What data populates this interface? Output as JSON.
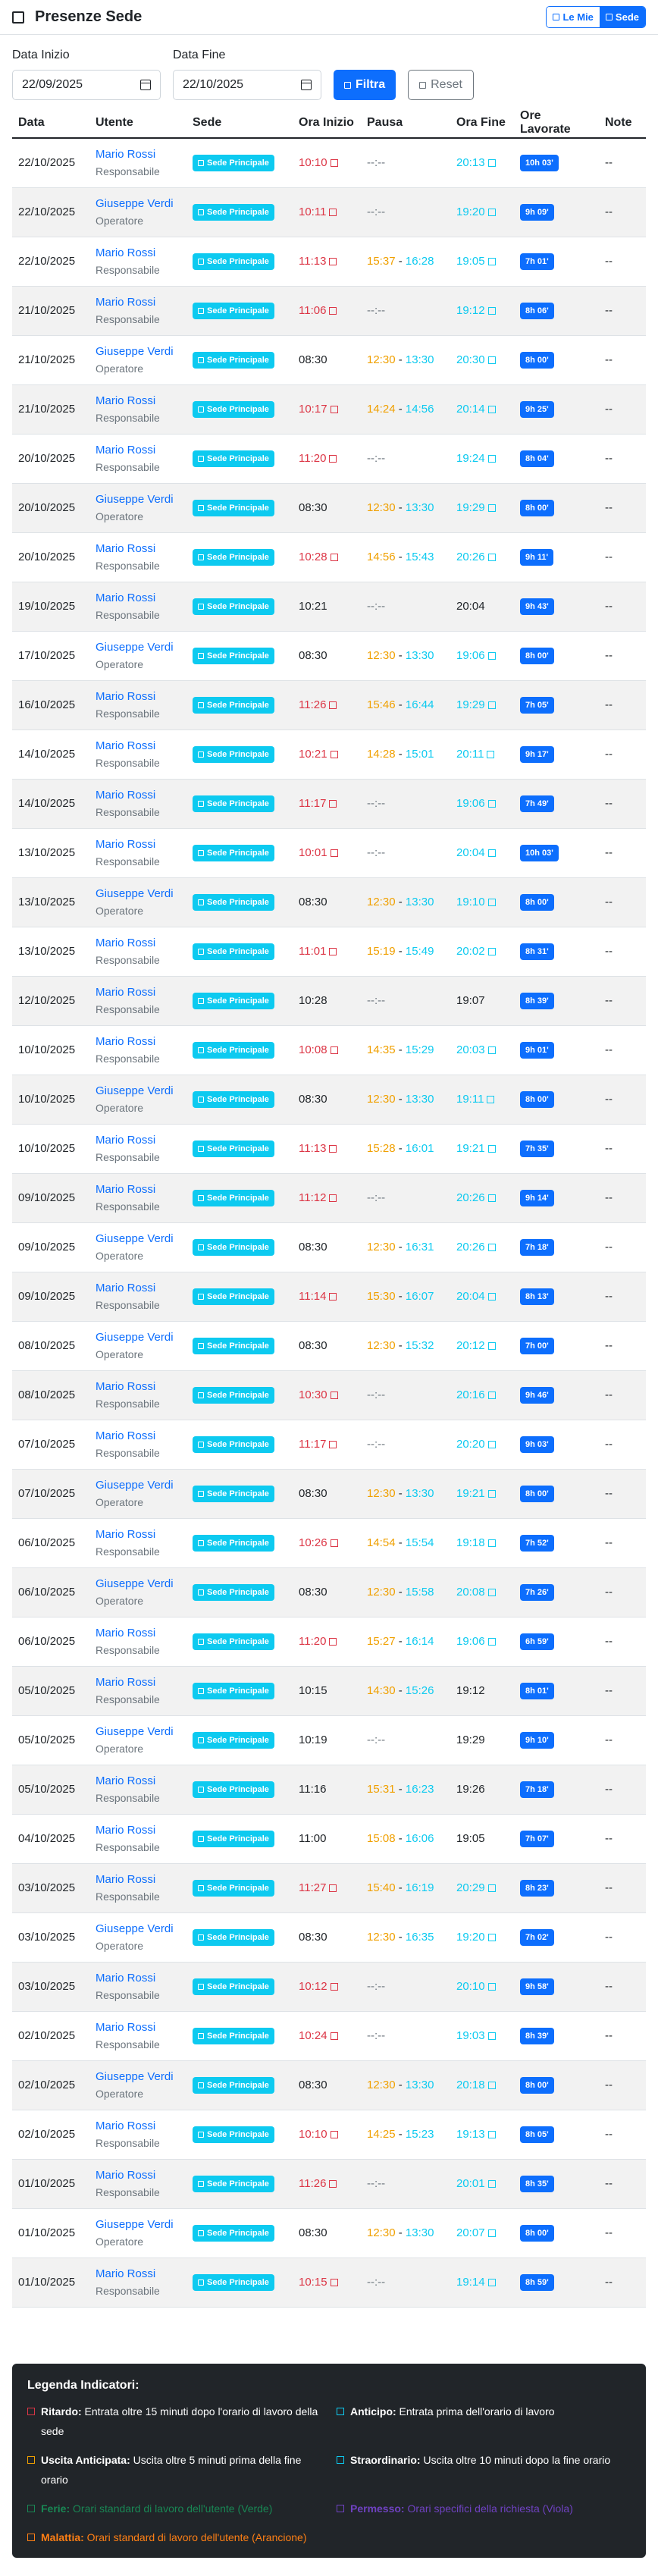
{
  "header": {
    "title": "Presenze Sede",
    "toggle_mine": "Le Mie",
    "toggle_site": "Sede"
  },
  "filters": {
    "start_label": "Data Inizio",
    "start_value": "22/09/2025",
    "end_label": "Data Fine",
    "end_value": "22/10/2025",
    "filter_button": "Filtra",
    "reset_button": "Reset"
  },
  "table": {
    "columns": [
      "Data",
      "Utente",
      "Sede",
      "Ora Inizio",
      "Pausa",
      "Ora Fine",
      "Ore Lavorate",
      "Note"
    ],
    "rows": [
      {
        "date": "22/10/2025",
        "user": "Mario Rossi",
        "role": "Responsabile",
        "site": "Sede Principale",
        "start": "10:10",
        "start_ind": "late",
        "pause_start": "",
        "pause_end": "",
        "end": "20:13",
        "end_ind": "over",
        "hours": "10h 03'",
        "note": "--"
      },
      {
        "date": "22/10/2025",
        "user": "Giuseppe Verdi",
        "role": "Operatore",
        "site": "Sede Principale",
        "start": "10:11",
        "start_ind": "late",
        "pause_start": "",
        "pause_end": "",
        "end": "19:20",
        "end_ind": "over",
        "hours": "9h 09'",
        "note": "--"
      },
      {
        "date": "22/10/2025",
        "user": "Mario Rossi",
        "role": "Responsabile",
        "site": "Sede Principale",
        "start": "11:13",
        "start_ind": "late",
        "pause_start": "15:37",
        "pause_end": "16:28",
        "end": "19:05",
        "end_ind": "over",
        "hours": "7h 01'",
        "note": "--"
      },
      {
        "date": "21/10/2025",
        "user": "Mario Rossi",
        "role": "Responsabile",
        "site": "Sede Principale",
        "start": "11:06",
        "start_ind": "late",
        "pause_start": "",
        "pause_end": "",
        "end": "19:12",
        "end_ind": "over",
        "hours": "8h 06'",
        "note": "--"
      },
      {
        "date": "21/10/2025",
        "user": "Giuseppe Verdi",
        "role": "Operatore",
        "site": "Sede Principale",
        "start": "08:30",
        "start_ind": "",
        "pause_start": "12:30",
        "pause_end": "13:30",
        "end": "20:30",
        "end_ind": "over",
        "hours": "8h 00'",
        "note": "--"
      },
      {
        "date": "21/10/2025",
        "user": "Mario Rossi",
        "role": "Responsabile",
        "site": "Sede Principale",
        "start": "10:17",
        "start_ind": "late",
        "pause_start": "14:24",
        "pause_end": "14:56",
        "end": "20:14",
        "end_ind": "over",
        "hours": "9h 25'",
        "note": "--"
      },
      {
        "date": "20/10/2025",
        "user": "Mario Rossi",
        "role": "Responsabile",
        "site": "Sede Principale",
        "start": "11:20",
        "start_ind": "late",
        "pause_start": "",
        "pause_end": "",
        "end": "19:24",
        "end_ind": "over",
        "hours": "8h 04'",
        "note": "--"
      },
      {
        "date": "20/10/2025",
        "user": "Giuseppe Verdi",
        "role": "Operatore",
        "site": "Sede Principale",
        "start": "08:30",
        "start_ind": "",
        "pause_start": "12:30",
        "pause_end": "13:30",
        "end": "19:29",
        "end_ind": "over",
        "hours": "8h 00'",
        "note": "--"
      },
      {
        "date": "20/10/2025",
        "user": "Mario Rossi",
        "role": "Responsabile",
        "site": "Sede Principale",
        "start": "10:28",
        "start_ind": "late",
        "pause_start": "14:56",
        "pause_end": "15:43",
        "end": "20:26",
        "end_ind": "over",
        "hours": "9h 11'",
        "note": "--"
      },
      {
        "date": "19/10/2025",
        "user": "Mario Rossi",
        "role": "Responsabile",
        "site": "Sede Principale",
        "start": "10:21",
        "start_ind": "",
        "pause_start": "",
        "pause_end": "",
        "end": "20:04",
        "end_ind": "",
        "hours": "9h 43'",
        "note": "--"
      },
      {
        "date": "17/10/2025",
        "user": "Giuseppe Verdi",
        "role": "Operatore",
        "site": "Sede Principale",
        "start": "08:30",
        "start_ind": "",
        "pause_start": "12:30",
        "pause_end": "13:30",
        "end": "19:06",
        "end_ind": "over",
        "hours": "8h 00'",
        "note": "--"
      },
      {
        "date": "16/10/2025",
        "user": "Mario Rossi",
        "role": "Responsabile",
        "site": "Sede Principale",
        "start": "11:26",
        "start_ind": "late",
        "pause_start": "15:46",
        "pause_end": "16:44",
        "end": "19:29",
        "end_ind": "over",
        "hours": "7h 05'",
        "note": "--"
      },
      {
        "date": "14/10/2025",
        "user": "Mario Rossi",
        "role": "Responsabile",
        "site": "Sede Principale",
        "start": "10:21",
        "start_ind": "late",
        "pause_start": "14:28",
        "pause_end": "15:01",
        "end": "20:11",
        "end_ind": "over",
        "hours": "9h 17'",
        "note": "--"
      },
      {
        "date": "14/10/2025",
        "user": "Mario Rossi",
        "role": "Responsabile",
        "site": "Sede Principale",
        "start": "11:17",
        "start_ind": "late",
        "pause_start": "",
        "pause_end": "",
        "end": "19:06",
        "end_ind": "over",
        "hours": "7h 49'",
        "note": "--"
      },
      {
        "date": "13/10/2025",
        "user": "Mario Rossi",
        "role": "Responsabile",
        "site": "Sede Principale",
        "start": "10:01",
        "start_ind": "late",
        "pause_start": "",
        "pause_end": "",
        "end": "20:04",
        "end_ind": "over",
        "hours": "10h 03'",
        "note": "--"
      },
      {
        "date": "13/10/2025",
        "user": "Giuseppe Verdi",
        "role": "Operatore",
        "site": "Sede Principale",
        "start": "08:30",
        "start_ind": "",
        "pause_start": "12:30",
        "pause_end": "13:30",
        "end": "19:10",
        "end_ind": "over",
        "hours": "8h 00'",
        "note": "--"
      },
      {
        "date": "13/10/2025",
        "user": "Mario Rossi",
        "role": "Responsabile",
        "site": "Sede Principale",
        "start": "11:01",
        "start_ind": "late",
        "pause_start": "15:19",
        "pause_end": "15:49",
        "end": "20:02",
        "end_ind": "over",
        "hours": "8h 31'",
        "note": "--"
      },
      {
        "date": "12/10/2025",
        "user": "Mario Rossi",
        "role": "Responsabile",
        "site": "Sede Principale",
        "start": "10:28",
        "start_ind": "",
        "pause_start": "",
        "pause_end": "",
        "end": "19:07",
        "end_ind": "",
        "hours": "8h 39'",
        "note": "--"
      },
      {
        "date": "10/10/2025",
        "user": "Mario Rossi",
        "role": "Responsabile",
        "site": "Sede Principale",
        "start": "10:08",
        "start_ind": "late",
        "pause_start": "14:35",
        "pause_end": "15:29",
        "end": "20:03",
        "end_ind": "over",
        "hours": "9h 01'",
        "note": "--"
      },
      {
        "date": "10/10/2025",
        "user": "Giuseppe Verdi",
        "role": "Operatore",
        "site": "Sede Principale",
        "start": "08:30",
        "start_ind": "",
        "pause_start": "12:30",
        "pause_end": "13:30",
        "end": "19:11",
        "end_ind": "over",
        "hours": "8h 00'",
        "note": "--"
      },
      {
        "date": "10/10/2025",
        "user": "Mario Rossi",
        "role": "Responsabile",
        "site": "Sede Principale",
        "start": "11:13",
        "start_ind": "late",
        "pause_start": "15:28",
        "pause_end": "16:01",
        "end": "19:21",
        "end_ind": "over",
        "hours": "7h 35'",
        "note": "--"
      },
      {
        "date": "09/10/2025",
        "user": "Mario Rossi",
        "role": "Responsabile",
        "site": "Sede Principale",
        "start": "11:12",
        "start_ind": "late",
        "pause_start": "",
        "pause_end": "",
        "end": "20:26",
        "end_ind": "over",
        "hours": "9h 14'",
        "note": "--"
      },
      {
        "date": "09/10/2025",
        "user": "Giuseppe Verdi",
        "role": "Operatore",
        "site": "Sede Principale",
        "start": "08:30",
        "start_ind": "",
        "pause_start": "12:30",
        "pause_end": "16:31",
        "end": "20:26",
        "end_ind": "over",
        "hours": "7h 18'",
        "note": "--"
      },
      {
        "date": "09/10/2025",
        "user": "Mario Rossi",
        "role": "Responsabile",
        "site": "Sede Principale",
        "start": "11:14",
        "start_ind": "late",
        "pause_start": "15:30",
        "pause_end": "16:07",
        "end": "20:04",
        "end_ind": "over",
        "hours": "8h 13'",
        "note": "--"
      },
      {
        "date": "08/10/2025",
        "user": "Giuseppe Verdi",
        "role": "Operatore",
        "site": "Sede Principale",
        "start": "08:30",
        "start_ind": "",
        "pause_start": "12:30",
        "pause_end": "15:32",
        "end": "20:12",
        "end_ind": "over",
        "hours": "7h 00'",
        "note": "--"
      },
      {
        "date": "08/10/2025",
        "user": "Mario Rossi",
        "role": "Responsabile",
        "site": "Sede Principale",
        "start": "10:30",
        "start_ind": "late",
        "pause_start": "",
        "pause_end": "",
        "end": "20:16",
        "end_ind": "over",
        "hours": "9h 46'",
        "note": "--"
      },
      {
        "date": "07/10/2025",
        "user": "Mario Rossi",
        "role": "Responsabile",
        "site": "Sede Principale",
        "start": "11:17",
        "start_ind": "late",
        "pause_start": "",
        "pause_end": "",
        "end": "20:20",
        "end_ind": "over",
        "hours": "9h 03'",
        "note": "--"
      },
      {
        "date": "07/10/2025",
        "user": "Giuseppe Verdi",
        "role": "Operatore",
        "site": "Sede Principale",
        "start": "08:30",
        "start_ind": "",
        "pause_start": "12:30",
        "pause_end": "13:30",
        "end": "19:21",
        "end_ind": "over",
        "hours": "8h 00'",
        "note": "--"
      },
      {
        "date": "06/10/2025",
        "user": "Mario Rossi",
        "role": "Responsabile",
        "site": "Sede Principale",
        "start": "10:26",
        "start_ind": "late",
        "pause_start": "14:54",
        "pause_end": "15:54",
        "end": "19:18",
        "end_ind": "over",
        "hours": "7h 52'",
        "note": "--"
      },
      {
        "date": "06/10/2025",
        "user": "Giuseppe Verdi",
        "role": "Operatore",
        "site": "Sede Principale",
        "start": "08:30",
        "start_ind": "",
        "pause_start": "12:30",
        "pause_end": "15:58",
        "end": "20:08",
        "end_ind": "over",
        "hours": "7h 26'",
        "note": "--"
      },
      {
        "date": "06/10/2025",
        "user": "Mario Rossi",
        "role": "Responsabile",
        "site": "Sede Principale",
        "start": "11:20",
        "start_ind": "late",
        "pause_start": "15:27",
        "pause_end": "16:14",
        "end": "19:06",
        "end_ind": "over",
        "hours": "6h 59'",
        "note": "--"
      },
      {
        "date": "05/10/2025",
        "user": "Mario Rossi",
        "role": "Responsabile",
        "site": "Sede Principale",
        "start": "10:15",
        "start_ind": "",
        "pause_start": "14:30",
        "pause_end": "15:26",
        "end": "19:12",
        "end_ind": "",
        "hours": "8h 01'",
        "note": "--"
      },
      {
        "date": "05/10/2025",
        "user": "Giuseppe Verdi",
        "role": "Operatore",
        "site": "Sede Principale",
        "start": "10:19",
        "start_ind": "",
        "pause_start": "",
        "pause_end": "",
        "end": "19:29",
        "end_ind": "",
        "hours": "9h 10'",
        "note": "--"
      },
      {
        "date": "05/10/2025",
        "user": "Mario Rossi",
        "role": "Responsabile",
        "site": "Sede Principale",
        "start": "11:16",
        "start_ind": "",
        "pause_start": "15:31",
        "pause_end": "16:23",
        "end": "19:26",
        "end_ind": "",
        "hours": "7h 18'",
        "note": "--"
      },
      {
        "date": "04/10/2025",
        "user": "Mario Rossi",
        "role": "Responsabile",
        "site": "Sede Principale",
        "start": "11:00",
        "start_ind": "",
        "pause_start": "15:08",
        "pause_end": "16:06",
        "end": "19:05",
        "end_ind": "",
        "hours": "7h 07'",
        "note": "--"
      },
      {
        "date": "03/10/2025",
        "user": "Mario Rossi",
        "role": "Responsabile",
        "site": "Sede Principale",
        "start": "11:27",
        "start_ind": "late",
        "pause_start": "15:40",
        "pause_end": "16:19",
        "end": "20:29",
        "end_ind": "over",
        "hours": "8h 23'",
        "note": "--"
      },
      {
        "date": "03/10/2025",
        "user": "Giuseppe Verdi",
        "role": "Operatore",
        "site": "Sede Principale",
        "start": "08:30",
        "start_ind": "",
        "pause_start": "12:30",
        "pause_end": "16:35",
        "end": "19:20",
        "end_ind": "over",
        "hours": "7h 02'",
        "note": "--"
      },
      {
        "date": "03/10/2025",
        "user": "Mario Rossi",
        "role": "Responsabile",
        "site": "Sede Principale",
        "start": "10:12",
        "start_ind": "late",
        "pause_start": "",
        "pause_end": "",
        "end": "20:10",
        "end_ind": "over",
        "hours": "9h 58'",
        "note": "--"
      },
      {
        "date": "02/10/2025",
        "user": "Mario Rossi",
        "role": "Responsabile",
        "site": "Sede Principale",
        "start": "10:24",
        "start_ind": "late",
        "pause_start": "",
        "pause_end": "",
        "end": "19:03",
        "end_ind": "over",
        "hours": "8h 39'",
        "note": "--"
      },
      {
        "date": "02/10/2025",
        "user": "Giuseppe Verdi",
        "role": "Operatore",
        "site": "Sede Principale",
        "start": "08:30",
        "start_ind": "",
        "pause_start": "12:30",
        "pause_end": "13:30",
        "end": "20:18",
        "end_ind": "over",
        "hours": "8h 00'",
        "note": "--"
      },
      {
        "date": "02/10/2025",
        "user": "Mario Rossi",
        "role": "Responsabile",
        "site": "Sede Principale",
        "start": "10:10",
        "start_ind": "late",
        "pause_start": "14:25",
        "pause_end": "15:23",
        "end": "19:13",
        "end_ind": "over",
        "hours": "8h 05'",
        "note": "--"
      },
      {
        "date": "01/10/2025",
        "user": "Mario Rossi",
        "role": "Responsabile",
        "site": "Sede Principale",
        "start": "11:26",
        "start_ind": "late",
        "pause_start": "",
        "pause_end": "",
        "end": "20:01",
        "end_ind": "over",
        "hours": "8h 35'",
        "note": "--"
      },
      {
        "date": "01/10/2025",
        "user": "Giuseppe Verdi",
        "role": "Operatore",
        "site": "Sede Principale",
        "start": "08:30",
        "start_ind": "",
        "pause_start": "12:30",
        "pause_end": "13:30",
        "end": "20:07",
        "end_ind": "over",
        "hours": "8h 00'",
        "note": "--"
      },
      {
        "date": "01/10/2025",
        "user": "Mario Rossi",
        "role": "Responsabile",
        "site": "Sede Principale",
        "start": "10:15",
        "start_ind": "late",
        "pause_start": "",
        "pause_end": "",
        "end": "19:14",
        "end_ind": "over",
        "hours": "8h 59'",
        "note": "--"
      }
    ],
    "empty_pause": "--:--",
    "pause_separator": " - "
  },
  "legend": {
    "title": "Legenda Indicatori:",
    "items": [
      {
        "label": "Ritardo:",
        "text": "Entrata oltre 15 minuti dopo l'orario di lavoro della sede",
        "color": "red"
      },
      {
        "label": "Anticipo:",
        "text": "Entrata prima dell'orario di lavoro",
        "color": "cyan"
      },
      {
        "label": "Uscita Anticipata:",
        "text": "Uscita oltre 5 minuti prima della fine orario",
        "color": "orange"
      },
      {
        "label": "Straordinario:",
        "text": "Uscita oltre 10 minuti dopo la fine orario",
        "color": "cyan"
      },
      {
        "label": "Ferie:",
        "text": "Orari standard di lavoro dell'utente (Verde)",
        "color": "green"
      },
      {
        "label": "Permesso:",
        "text": "Orari specifici della richiesta (Viola)",
        "color": "purple"
      },
      {
        "label": "Malattia:",
        "text": "Orari standard di lavoro dell'utente (Arancione)",
        "color": "orange2"
      }
    ]
  }
}
